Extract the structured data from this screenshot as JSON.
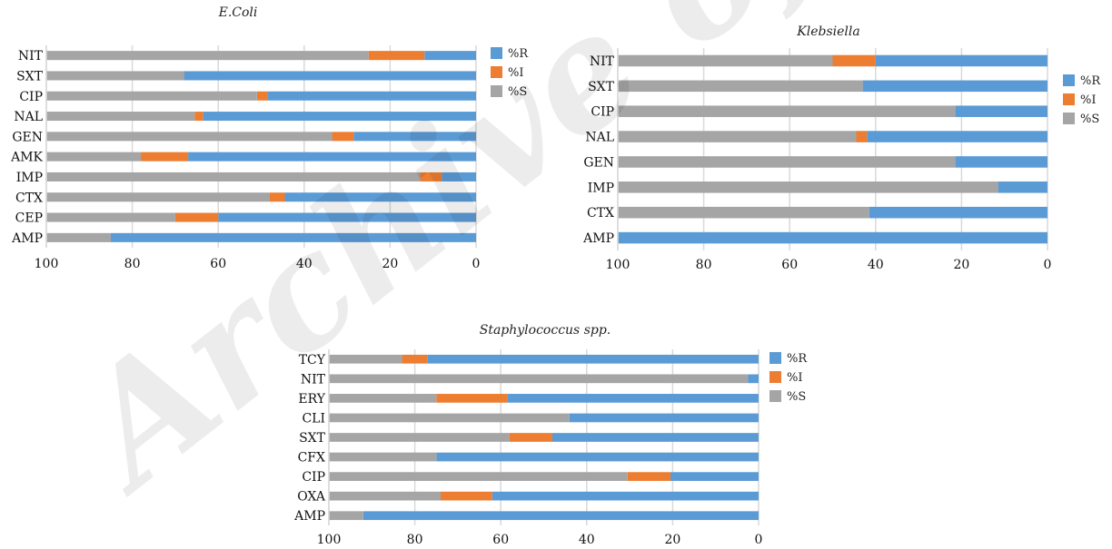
{
  "colors": {
    "R": "#5b9bd5",
    "I": "#ed7d31",
    "S": "#a5a5a5",
    "grid": "#d9d9d9"
  },
  "watermark": "Archive of",
  "chart_data": [
    {
      "type": "bar",
      "orientation": "horizontal-stacked",
      "x_axis_reversed": true,
      "title": "E.Coli",
      "categories": [
        "NIT",
        "SXT",
        "CIP",
        "NAL",
        "GEN",
        "AMK",
        "IMP",
        "CTX",
        "CEP",
        "AMP"
      ],
      "series": [
        {
          "name": "%R",
          "key": "R",
          "values": [
            12,
            68,
            48.5,
            63.5,
            28.5,
            67,
            8,
            44.5,
            60,
            85
          ]
        },
        {
          "name": "%I",
          "key": "I",
          "values": [
            13,
            0,
            2.5,
            2,
            5,
            11,
            5,
            3.5,
            10,
            0
          ]
        },
        {
          "name": "%S",
          "key": "S",
          "values": [
            75,
            32,
            49,
            34.5,
            66.5,
            22,
            87,
            52,
            30,
            15
          ]
        }
      ],
      "xlim": [
        100,
        0
      ],
      "xticks": [
        "100",
        "80",
        "60",
        "40",
        "20",
        "0"
      ],
      "grid": true,
      "legend": "right"
    },
    {
      "type": "bar",
      "orientation": "horizontal-stacked",
      "x_axis_reversed": true,
      "title": "Klebsiella",
      "categories": [
        "NIT",
        "SXT",
        "CIP",
        "NAL",
        "GEN",
        "IMP",
        "CTX",
        "AMP"
      ],
      "series": [
        {
          "name": "%R",
          "key": "R",
          "values": [
            40,
            43,
            21.5,
            42,
            21.5,
            11.5,
            41.5,
            100
          ]
        },
        {
          "name": "%I",
          "key": "I",
          "values": [
            10,
            0,
            0,
            2.5,
            0,
            0,
            0,
            0
          ]
        },
        {
          "name": "%S",
          "key": "S",
          "values": [
            50,
            57,
            78.5,
            55.5,
            78.5,
            88.5,
            58.5,
            0
          ]
        }
      ],
      "xlim": [
        100,
        0
      ],
      "xticks": [
        "100",
        "80",
        "60",
        "40",
        "20",
        "0"
      ],
      "grid": true,
      "legend": "right"
    },
    {
      "type": "bar",
      "orientation": "horizontal-stacked",
      "x_axis_reversed": true,
      "title": "Staphylococcus spp.",
      "categories": [
        "TCY",
        "NIT",
        "ERY",
        "CLI",
        "SXT",
        "CFX",
        "CIP",
        "OXA",
        "AMP"
      ],
      "series": [
        {
          "name": "%R",
          "key": "R",
          "values": [
            77,
            2.5,
            58.5,
            44,
            48,
            75,
            20.5,
            62,
            92
          ]
        },
        {
          "name": "%I",
          "key": "I",
          "values": [
            6,
            0,
            16.5,
            0,
            10,
            0,
            10,
            12,
            0
          ]
        },
        {
          "name": "%S",
          "key": "S",
          "values": [
            17,
            97.5,
            25,
            56,
            42,
            25,
            69.5,
            26,
            8
          ]
        }
      ],
      "xlim": [
        100,
        0
      ],
      "xticks": [
        "100",
        "80",
        "60",
        "40",
        "20",
        "0"
      ],
      "grid": true,
      "legend": "right"
    }
  ]
}
